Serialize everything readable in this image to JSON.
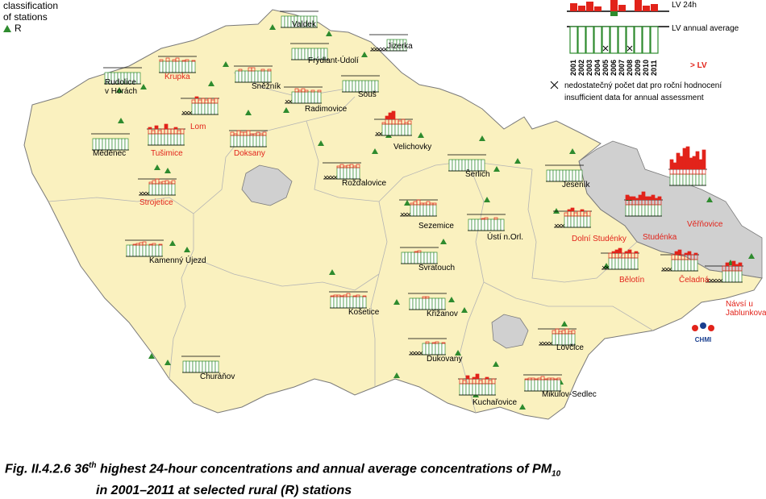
{
  "legend": {
    "classification": "classification",
    "of_stations": "of stations",
    "rural_symbol": "R",
    "lv24h": "LV 24h",
    "lv_annual": "LV annual average",
    "years": [
      "2001",
      "2002",
      "2003",
      "2004",
      "2005",
      "2006",
      "2007",
      "2008",
      "2009",
      "2010",
      "2011"
    ],
    "gt_lv": "> LV",
    "insufficient_cz": "nedostatečný počet dat pro roční hodnocení",
    "insufficient_en": "insufficient data for annual assessment",
    "logo": "CHMI"
  },
  "colors": {
    "country_fill": "#faf1bf",
    "outside_fill": "#d0d0d0",
    "border": "#7a7a7a",
    "region_line": "#b4b4b4",
    "exceed": "#e2231a",
    "annual": "#2e8b2e",
    "station_marker": "#2e8b2e",
    "label_red": "#e2231a"
  },
  "caption": {
    "prefix": "Fig. II.4.2.6  36",
    "sup": "th",
    "mid": " highest 24-hour concentrations and annual average concentrations of PM",
    "sub": "10",
    "line2": "in 2001–2011 at selected rural (R) stations"
  },
  "stations": [
    {
      "name": "Valdek",
      "red": false,
      "bars": [
        0.5,
        0.6,
        0.55,
        0.5,
        0.5,
        0.7,
        0.5,
        0.5,
        0.55,
        0.5,
        0.5
      ],
      "missing": []
    },
    {
      "name": "Jizerka",
      "red": false,
      "bars": [
        0,
        0,
        0,
        0,
        0,
        0.4,
        0.5,
        0.4,
        0.5,
        0.5,
        0.5
      ],
      "missing": [
        0,
        1,
        2,
        3,
        4
      ]
    },
    {
      "name": "Frýdlant-Údolí",
      "red": false,
      "bars": [
        0.5,
        0.6,
        0.5,
        0.55,
        0.6,
        0.6,
        0.5,
        0.5,
        0.55,
        0.5,
        0.5
      ],
      "missing": []
    },
    {
      "name": "Rudolice v Horách",
      "red": false,
      "bars": [
        0.6,
        0.5,
        0.55,
        0.45,
        0.5,
        0.5,
        0.5,
        0.45,
        0.5,
        0.45,
        0.45
      ],
      "missing": []
    },
    {
      "name": "Krupka",
      "red": true,
      "bars": [
        0.8,
        0.7,
        0.9,
        0.7,
        0.8,
        0.9,
        0.7,
        0.75,
        0.8,
        0.7,
        0.75
      ],
      "missing": []
    },
    {
      "name": "Sněžník",
      "red": false,
      "bars": [
        0.7,
        0.8,
        0.6,
        0.7,
        0.9,
        0.9,
        0.7,
        0.7,
        0.8,
        0.6,
        0.8
      ],
      "missing": []
    },
    {
      "name": "Souš",
      "red": false,
      "bars": [
        0.6,
        0.6,
        0.55,
        0.6,
        0.6,
        0.7,
        0.6,
        0.6,
        0.6,
        0.55,
        0.6
      ],
      "missing": []
    },
    {
      "name": "Radimovice",
      "red": false,
      "bars": [
        0,
        0,
        0.7,
        0.9,
        0.8,
        0.9,
        0.8,
        0.7,
        0.8,
        0.7,
        0.8
      ],
      "missing": [
        0,
        1
      ]
    },
    {
      "name": "Lom",
      "red": true,
      "bars": [
        0,
        0,
        0,
        0.9,
        1.1,
        0.9,
        1.0,
        0.9,
        1.0,
        0.9,
        1.0
      ],
      "missing": [
        0,
        1,
        2
      ]
    },
    {
      "name": "Měděnec",
      "red": false,
      "bars": [
        0.7,
        0.6,
        0.7,
        0.6,
        0.7,
        0.65,
        0.6,
        0.65,
        0.7,
        0.6,
        0.6
      ],
      "missing": []
    },
    {
      "name": "Tušimice",
      "red": true,
      "bars": [
        1.1,
        0.9,
        1.2,
        0.9,
        1.0,
        1.3,
        1.0,
        1.0,
        1.1,
        0.9,
        1.0
      ],
      "missing": []
    },
    {
      "name": "Doksany",
      "red": true,
      "bars": [
        0.9,
        0.8,
        1.0,
        0.9,
        0.9,
        1.0,
        0.8,
        0.8,
        0.9,
        0.8,
        0.9
      ],
      "missing": []
    },
    {
      "name": "Velichovky",
      "red": false,
      "bars": [
        0,
        0,
        0.8,
        1.2,
        1.4,
        1.5,
        1.0,
        0.9,
        1.0,
        0.8,
        0.9
      ],
      "missing": [
        0,
        1
      ]
    },
    {
      "name": "Šerlich",
      "red": false,
      "bars": [
        0.6,
        0.5,
        0.55,
        0.6,
        0.6,
        0.7,
        0.6,
        0.55,
        0.6,
        0.55,
        0.6
      ],
      "missing": []
    },
    {
      "name": "Rožďalovice",
      "red": false,
      "bars": [
        0,
        0,
        0,
        0,
        0.8,
        0.9,
        0.8,
        0.85,
        0.9,
        0.8,
        0.9
      ],
      "missing": [
        0,
        1,
        2,
        3
      ]
    },
    {
      "name": "Jeseník",
      "red": false,
      "bars": [
        0.6,
        0.6,
        0.55,
        0.6,
        0.6,
        0.7,
        0.6,
        0.6,
        0.6,
        0.55,
        0.6
      ],
      "missing": []
    },
    {
      "name": "Strojetice",
      "red": true,
      "bars": [
        0,
        0,
        0,
        0.8,
        0.9,
        1.0,
        0.8,
        0.85,
        0.9,
        0.8,
        0.9
      ],
      "missing": [
        0,
        1,
        2
      ]
    },
    {
      "name": "Sezemice",
      "red": false,
      "bars": [
        0,
        0,
        0,
        0.8,
        0.9,
        1.0,
        0.8,
        0.8,
        0.9,
        0.8,
        0.8
      ],
      "missing": [
        0,
        1,
        2
      ]
    },
    {
      "name": "Ústí n.Orl.",
      "red": false,
      "bars": [
        0.6,
        0.7,
        0.6,
        0.7,
        0.75,
        0.8,
        0.6,
        0.7,
        0.8,
        0.6,
        0.7
      ],
      "missing": []
    },
    {
      "name": "Dolní Studénky",
      "red": true,
      "bars": [
        0,
        0,
        0,
        0.9,
        1.1,
        1.2,
        0.9,
        1.0,
        1.1,
        0.9,
        1.0
      ],
      "missing": [
        0,
        1,
        2
      ]
    },
    {
      "name": "Studénka",
      "red": true,
      "bars": [
        1.3,
        1.2,
        1.2,
        1.1,
        1.3,
        1.5,
        1.2,
        1.2,
        1.3,
        1.1,
        1.2
      ],
      "missing": []
    },
    {
      "name": "Věřňovice",
      "red": true,
      "bars": [
        1.6,
        1.4,
        2.0,
        1.8,
        2.3,
        2.4,
        1.7,
        1.8,
        2.1,
        1.6,
        2.2
      ],
      "missing": []
    },
    {
      "name": "Kamenný Újezd",
      "red": false,
      "bars": [
        0.7,
        0.7,
        0.75,
        0.8,
        0.85,
        0.9,
        0.7,
        0.75,
        0.8,
        0.7,
        0.75
      ],
      "missing": []
    },
    {
      "name": "Svratouch",
      "red": false,
      "bars": [
        0.6,
        0.7,
        0.65,
        0.7,
        0.75,
        0.8,
        0.6,
        0.65,
        0.7,
        0.6,
        0.7
      ],
      "missing": []
    },
    {
      "name": "Bělotín",
      "red": true,
      "bars": [
        0,
        0,
        1.0,
        1.1,
        1.2,
        1.3,
        1.0,
        1.1,
        1.2,
        1.0,
        1.1
      ],
      "missing": [
        0,
        1
      ]
    },
    {
      "name": "Čeladná",
      "red": true,
      "bars": [
        0,
        0,
        0,
        1.0,
        1.2,
        1.3,
        1.0,
        1.1,
        1.2,
        1.0,
        1.1
      ],
      "missing": [
        0,
        1,
        2
      ]
    },
    {
      "name": "Návsí u Jablunkova",
      "red": true,
      "bars": [
        0,
        0,
        0,
        0,
        0,
        1.0,
        1.2,
        1.0,
        1.3,
        1.1,
        1.2
      ],
      "missing": [
        0,
        1,
        2,
        3,
        4
      ]
    },
    {
      "name": "Košetice",
      "red": false,
      "bars": [
        0.75,
        0.8,
        0.8,
        0.75,
        0.8,
        0.9,
        0.7,
        0.75,
        0.8,
        0.7,
        0.75
      ],
      "missing": []
    },
    {
      "name": "Křižanov",
      "red": false,
      "bars": [
        0.6,
        0.7,
        0.7,
        0.65,
        0.8,
        0.8,
        0.6,
        0.7,
        0.7,
        0.6,
        0.7
      ],
      "missing": []
    },
    {
      "name": "Dukovany",
      "red": false,
      "bars": [
        0,
        0,
        0,
        0,
        0.7,
        0.8,
        0.7,
        0.75,
        0.8,
        0.7,
        0.75
      ],
      "missing": [
        0,
        1,
        2,
        3
      ]
    },
    {
      "name": "Lovčice",
      "red": false,
      "bars": [
        0,
        0,
        0,
        0,
        0.9,
        1.0,
        0.85,
        0.9,
        1.0,
        0.85,
        0.9
      ],
      "missing": [
        0,
        1,
        2,
        3
      ]
    },
    {
      "name": "Churáňov",
      "red": false,
      "bars": [
        0.5,
        0.5,
        0.5,
        0.5,
        0.5,
        0.55,
        0.5,
        0.5,
        0.5,
        0.5,
        0.5
      ],
      "missing": []
    },
    {
      "name": "Kuchařovice",
      "red": false,
      "bars": [
        1.0,
        0.9,
        1.2,
        1.0,
        1.1,
        1.3,
        0.9,
        1.0,
        1.1,
        0.9,
        1.0
      ],
      "missing": []
    },
    {
      "name": "Mikulov-Sedlec",
      "red": false,
      "bars": [
        0.75,
        0.8,
        0.8,
        0.75,
        0.8,
        0.9,
        0.75,
        0.8,
        0.8,
        0.75,
        0.8
      ],
      "missing": []
    }
  ]
}
